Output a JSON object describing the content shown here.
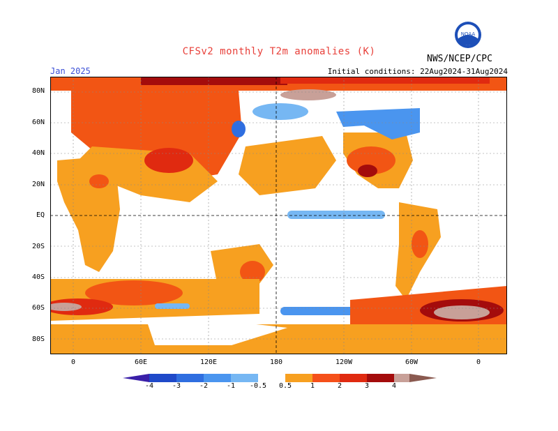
{
  "header": {
    "title": "CFSv2 monthly T2m anomalies (K)",
    "month": "Jan 2025",
    "initial_conditions": "Initial conditions: 22Aug2024-31Aug2024",
    "agency": "NWS/NCEP/CPC",
    "logo_text": "NOAA"
  },
  "axes": {
    "lat_labels": [
      "80N",
      "60N",
      "40N",
      "20N",
      "EQ",
      "20S",
      "40S",
      "60S",
      "80S"
    ],
    "lon_labels": [
      "0",
      "60E",
      "120E",
      "180",
      "120W",
      "60W",
      "0"
    ]
  },
  "legend": {
    "labels": [
      "-4",
      "-3",
      "-2",
      "-1",
      "-0.5",
      "0.5",
      "1",
      "2",
      "3",
      "4"
    ],
    "colors": [
      "#3a1fa8",
      "#1f49c9",
      "#2f6ee0",
      "#4a95ef",
      "#76b7f3",
      "#ffffff",
      "#f7a020",
      "#f5501a",
      "#e02a10",
      "#a40c0c",
      "#c8a098",
      "#8a5a50"
    ]
  },
  "colors": {
    "warm1": "#f7a020",
    "warm2": "#f25514",
    "warm3": "#e02a10",
    "warm4": "#a40c0c",
    "warm5": "#c8a098",
    "cool1": "#76b7f3",
    "cool2": "#4a95ef",
    "cool3": "#2f6ee0",
    "title": "#e8403a",
    "month": "#3a4fd6"
  }
}
